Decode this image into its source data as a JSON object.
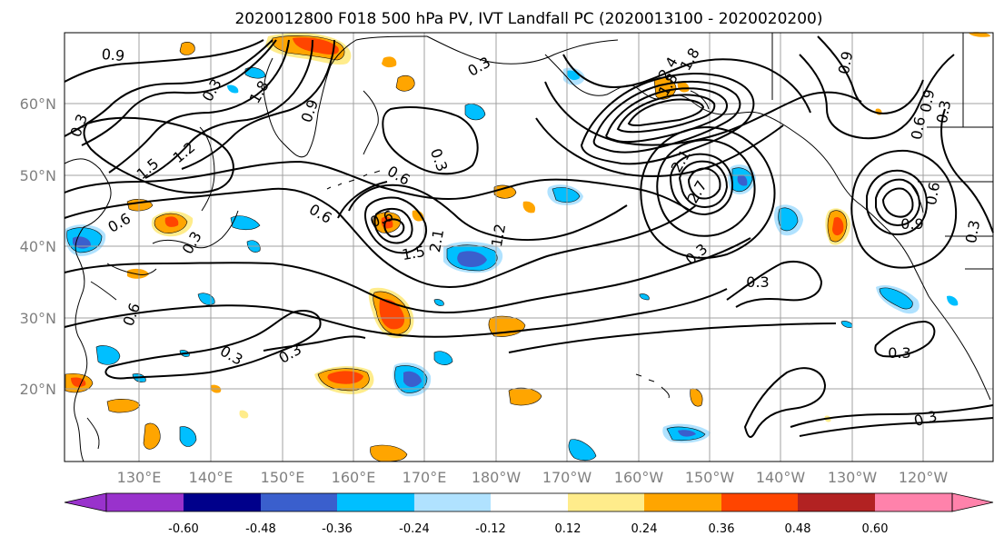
{
  "title": "2020012800 F018 500 hPa PV, IVT Landfall PC (2020013100 - 2020020200)",
  "lat_labels": [
    "60°N",
    "50°N",
    "40°N",
    "30°N",
    "20°N"
  ],
  "lon_labels": [
    "130°E",
    "140°E",
    "150°E",
    "160°E",
    "170°E",
    "180°W",
    "170°W",
    "160°W",
    "150°W",
    "140°W",
    "130°W",
    "120°W"
  ],
  "colorbar": {
    "colors": [
      "#9932cc",
      "#00008b",
      "#3a5fcd",
      "#00bfff",
      "#b0e2ff",
      "#ffffff",
      "#ffec8b",
      "#ffa500",
      "#ff4500",
      "#b22222",
      "#ff82ab"
    ],
    "tick_labels": [
      "-0.60",
      "-0.48",
      "-0.36",
      "-0.24",
      "-0.12",
      "0.12",
      "0.24",
      "0.36",
      "0.48",
      "0.60"
    ]
  },
  "contour_labels": [
    "0.9",
    "1.8",
    "0.3",
    "0.9",
    "1.5",
    "1.2",
    "0.3",
    "0.3",
    "0.6",
    "0.6",
    "0.6",
    "0.6",
    "0.3",
    "2.1",
    "1.5",
    "1.2",
    "0.3",
    "0.3",
    "0.3",
    "0.3",
    "0.6",
    "0.9",
    "0.3",
    "0.3",
    "0.3",
    "1.8",
    "2.4",
    "2.7",
    "2.1",
    "1.8",
    "0.3",
    "0.9",
    "0.6",
    "0.6",
    "0.9",
    "0.3"
  ]
}
